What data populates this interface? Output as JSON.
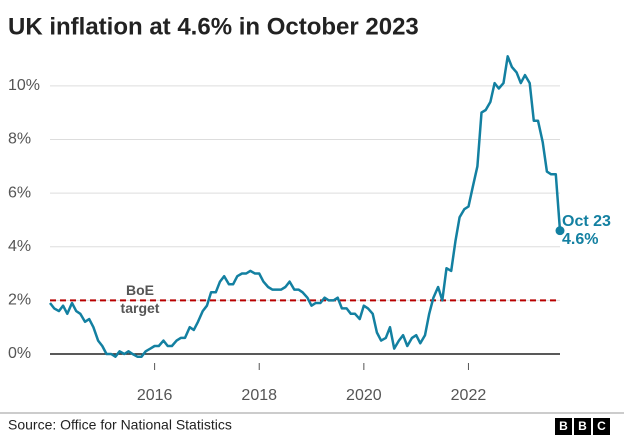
{
  "chart_data": {
    "type": "line",
    "title": "UK inflation at 4.6% in October 2023",
    "source": "Source: Office for National Statistics",
    "logo": [
      "B",
      "B",
      "C"
    ],
    "x": [
      2014,
      2014.08,
      2014.17,
      2014.25,
      2014.33,
      2014.42,
      2014.5,
      2014.58,
      2014.67,
      2014.75,
      2014.83,
      2014.92,
      2015,
      2015.08,
      2015.17,
      2015.25,
      2015.33,
      2015.42,
      2015.5,
      2015.58,
      2015.67,
      2015.75,
      2015.83,
      2015.92,
      2016,
      2016.08,
      2016.17,
      2016.25,
      2016.33,
      2016.42,
      2016.5,
      2016.58,
      2016.67,
      2016.75,
      2016.83,
      2016.92,
      2017,
      2017.08,
      2017.17,
      2017.25,
      2017.33,
      2017.42,
      2017.5,
      2017.58,
      2017.67,
      2017.75,
      2017.83,
      2017.92,
      2018,
      2018.08,
      2018.17,
      2018.25,
      2018.33,
      2018.42,
      2018.5,
      2018.58,
      2018.67,
      2018.75,
      2018.83,
      2018.92,
      2019,
      2019.08,
      2019.17,
      2019.25,
      2019.33,
      2019.42,
      2019.5,
      2019.58,
      2019.67,
      2019.75,
      2019.83,
      2019.92,
      2020,
      2020.08,
      2020.17,
      2020.25,
      2020.33,
      2020.42,
      2020.5,
      2020.58,
      2020.67,
      2020.75,
      2020.83,
      2020.92,
      2021,
      2021.08,
      2021.17,
      2021.25,
      2021.33,
      2021.42,
      2021.5,
      2021.58,
      2021.67,
      2021.75,
      2021.83,
      2021.92,
      2022,
      2022.08,
      2022.17,
      2022.25,
      2022.33,
      2022.42,
      2022.5,
      2022.58,
      2022.67,
      2022.75,
      2022.83,
      2022.92,
      2023,
      2023.08,
      2023.17,
      2023.25,
      2023.33,
      2023.42,
      2023.5,
      2023.58,
      2023.67,
      2023.75
    ],
    "series": [
      {
        "color": "#1380a1",
        "values": [
          1.9,
          1.7,
          1.6,
          1.8,
          1.5,
          1.9,
          1.6,
          1.5,
          1.2,
          1.3,
          1.0,
          0.5,
          0.3,
          0.0,
          0.0,
          -0.1,
          0.1,
          0.0,
          0.1,
          0.0,
          -0.1,
          -0.1,
          0.1,
          0.2,
          0.3,
          0.3,
          0.5,
          0.3,
          0.3,
          0.5,
          0.6,
          0.6,
          1.0,
          0.9,
          1.2,
          1.6,
          1.8,
          2.3,
          2.3,
          2.7,
          2.9,
          2.6,
          2.6,
          2.9,
          3.0,
          3.0,
          3.1,
          3.0,
          3.0,
          2.7,
          2.5,
          2.4,
          2.4,
          2.4,
          2.5,
          2.7,
          2.4,
          2.4,
          2.3,
          2.1,
          1.8,
          1.9,
          1.9,
          2.1,
          2.0,
          2.0,
          2.1,
          1.7,
          1.7,
          1.5,
          1.5,
          1.3,
          1.8,
          1.7,
          1.5,
          0.8,
          0.5,
          0.6,
          1.0,
          0.2,
          0.5,
          0.7,
          0.3,
          0.6,
          0.7,
          0.4,
          0.7,
          1.5,
          2.1,
          2.5,
          2.0,
          3.2,
          3.1,
          4.2,
          5.1,
          5.4,
          5.5,
          6.2,
          7.0,
          9.0,
          9.1,
          9.4,
          10.1,
          9.9,
          10.1,
          11.1,
          10.7,
          10.5,
          10.1,
          10.4,
          10.1,
          8.7,
          8.7,
          7.9,
          6.8,
          6.7,
          6.7,
          4.6
        ]
      }
    ],
    "end_label": [
      "Oct 23",
      "4.6%"
    ],
    "target": {
      "value": 2,
      "label": [
        "BoE",
        "target"
      ],
      "color": "#b80000"
    },
    "xlim": [
      2014,
      2023.75
    ],
    "xticks": [
      2016,
      2018,
      2020,
      2022
    ],
    "ylim": [
      0,
      11
    ],
    "yticks": [
      {
        "value": 0,
        "label": "0%"
      },
      {
        "value": 2,
        "label": "2%"
      },
      {
        "value": 4,
        "label": "4%"
      },
      {
        "value": 6,
        "label": "6%"
      },
      {
        "value": 8,
        "label": "8%"
      },
      {
        "value": 10,
        "label": "10%"
      }
    ],
    "grid": true
  }
}
